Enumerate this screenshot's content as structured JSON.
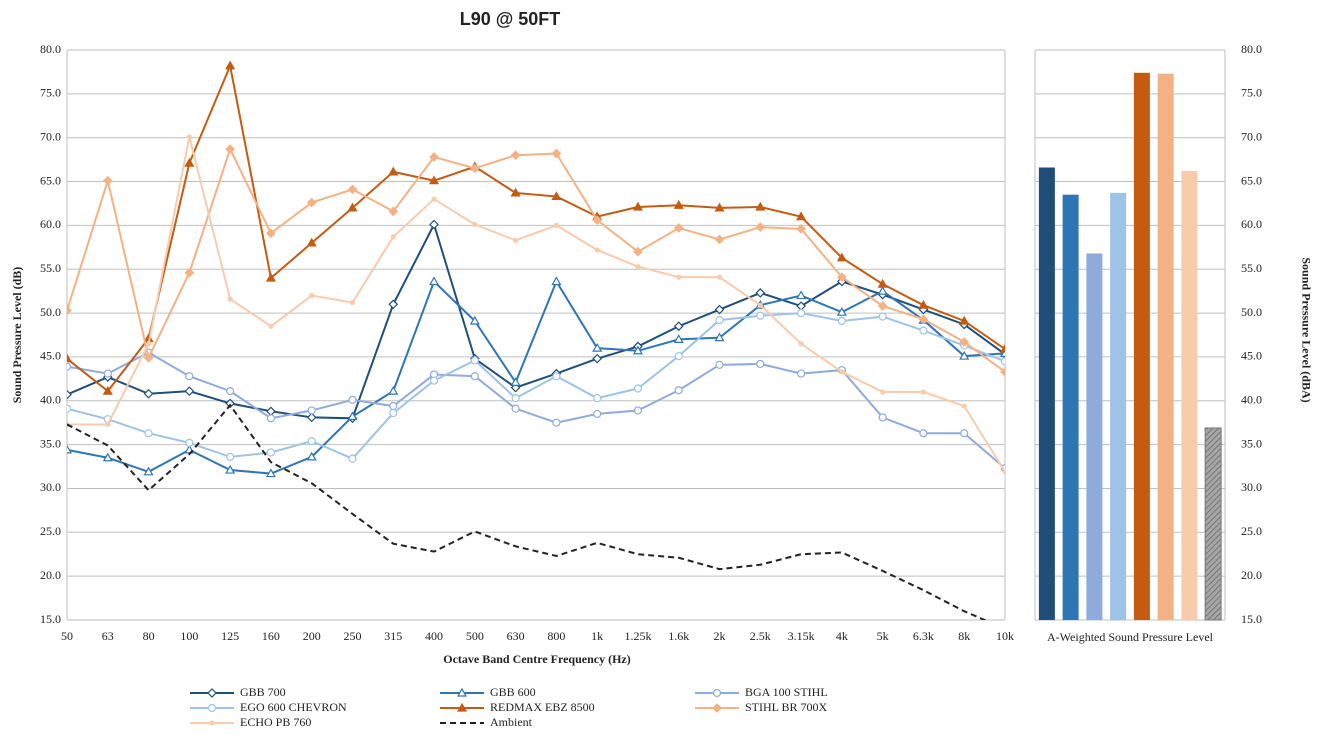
{
  "chart_data": [
    {
      "type": "line",
      "title": "L90 @ 50FT",
      "x_label": "Octave Band Centre Frequency (Hz)",
      "y_label": "Sound Pressure Level (dB)",
      "categories": [
        "50",
        "63",
        "80",
        "100",
        "125",
        "160",
        "200",
        "250",
        "315",
        "400",
        "500",
        "630",
        "800",
        "1k",
        "1.25k",
        "1.6k",
        "2k",
        "2.5k",
        "3.15k",
        "4k",
        "5k",
        "6.3k",
        "8k",
        "10k"
      ],
      "ylim": [
        15,
        80
      ],
      "yticks": [
        {
          "value": 15,
          "label": "15.0"
        },
        {
          "value": 20,
          "label": "20.0"
        },
        {
          "value": 25,
          "label": "25.0"
        },
        {
          "value": 30,
          "label": "30.0"
        },
        {
          "value": 35,
          "label": "35.0"
        },
        {
          "value": 40,
          "label": "40.0"
        },
        {
          "value": 45,
          "label": "45.0"
        },
        {
          "value": 50,
          "label": "50.0"
        },
        {
          "value": 55,
          "label": "55.0"
        },
        {
          "value": 60,
          "label": "60.0"
        },
        {
          "value": 65,
          "label": "65.0"
        },
        {
          "value": 70,
          "label": "70.0"
        },
        {
          "value": 75,
          "label": "75.0"
        },
        {
          "value": 80,
          "label": "80.0"
        }
      ],
      "grid": true,
      "series": [
        {
          "name": "GBB 700",
          "color": "#1f4e79",
          "marker": "diamond",
          "marker_fill": false,
          "values": [
            40.7,
            42.7,
            40.8,
            41.1,
            39.7,
            38.8,
            38.1,
            38.0,
            51.0,
            60.1,
            44.8,
            41.5,
            43.1,
            44.8,
            46.2,
            48.5,
            50.4,
            52.3,
            50.8,
            53.6,
            52.1,
            50.4,
            48.7,
            45.3
          ]
        },
        {
          "name": "GBB 600",
          "color": "#2e75b6",
          "marker": "triangle",
          "marker_fill": false,
          "values": [
            34.4,
            33.5,
            31.9,
            34.4,
            32.1,
            31.7,
            33.6,
            38.2,
            41.1,
            53.6,
            49.1,
            42.1,
            53.6,
            46.0,
            45.7,
            47.0,
            47.2,
            50.9,
            52.0,
            50.1,
            52.5,
            49.2,
            45.1,
            45.4
          ]
        },
        {
          "name": "BGA 100 STIHL",
          "color": "#8faadc",
          "marker": "circle",
          "marker_fill": false,
          "values": [
            43.9,
            43.1,
            45.5,
            42.8,
            41.1,
            38.0,
            38.9,
            40.1,
            39.4,
            43.0,
            42.8,
            39.1,
            37.5,
            38.5,
            38.9,
            41.2,
            44.1,
            44.2,
            43.1,
            43.5,
            38.1,
            36.3,
            36.3,
            32.3
          ]
        },
        {
          "name": "EGO 600 CHEVRON",
          "color": "#9dc3e6",
          "marker": "circle",
          "marker_fill": false,
          "values": [
            39.1,
            37.9,
            36.3,
            35.2,
            33.6,
            34.1,
            35.4,
            33.4,
            38.6,
            42.3,
            44.6,
            40.3,
            42.8,
            40.3,
            41.4,
            45.1,
            49.2,
            49.7,
            50.0,
            49.1,
            49.6,
            48.0,
            46.3,
            44.5
          ]
        },
        {
          "name": "REDMAX EBZ 8500",
          "color": "#c55a11",
          "marker": "triangle",
          "marker_fill": true,
          "values": [
            44.8,
            41.1,
            47.1,
            67.1,
            78.2,
            54.0,
            58.0,
            62.0,
            66.1,
            65.1,
            66.7,
            63.7,
            63.3,
            61.0,
            62.1,
            62.3,
            62.0,
            62.1,
            61.0,
            56.3,
            53.3,
            50.9,
            49.1,
            45.9
          ]
        },
        {
          "name": "STIHL BR 700X",
          "color": "#f4b183",
          "marker": "diamond",
          "marker_fill": true,
          "values": [
            50.3,
            65.1,
            44.9,
            54.6,
            68.7,
            59.1,
            62.6,
            64.1,
            61.6,
            67.8,
            66.5,
            68.0,
            68.2,
            60.6,
            57.0,
            59.7,
            58.4,
            59.8,
            59.6,
            54.1,
            50.8,
            49.3,
            46.7,
            43.3
          ]
        },
        {
          "name": "ECHO PB 760",
          "color": "#f8cbad",
          "marker": "small",
          "marker_fill": true,
          "values": [
            37.3,
            37.3,
            46.5,
            70.1,
            51.6,
            48.5,
            52.0,
            51.2,
            58.7,
            63.0,
            60.1,
            58.3,
            60.0,
            57.2,
            55.3,
            54.1,
            54.1,
            50.9,
            46.5,
            43.3,
            41.0,
            41.0,
            39.4,
            31.9
          ]
        },
        {
          "name": "Ambient",
          "color": "#222222",
          "marker": "none",
          "dash": true,
          "values": [
            37.3,
            34.9,
            29.8,
            33.9,
            39.5,
            33.0,
            30.6,
            27.1,
            23.7,
            22.8,
            25.1,
            23.4,
            22.3,
            23.8,
            22.5,
            22.1,
            20.8,
            21.3,
            22.5,
            22.7,
            20.6,
            18.4,
            16.0,
            14.0
          ]
        }
      ]
    },
    {
      "type": "bar",
      "x_label": "A-Weighted Sound Pressure Level",
      "y_label": "Sound Pressure Level (dBA)",
      "values": [
        66.6,
        63.5,
        56.8,
        63.7,
        77.4,
        77.3,
        66.2,
        36.9
      ],
      "colors": [
        "#1f4e79",
        "#2e75b6",
        "#8faadc",
        "#9dc3e6",
        "#c55a11",
        "#f4b183",
        "#f8cbad",
        "#a6a6a6"
      ],
      "hatch": [
        false,
        false,
        false,
        false,
        false,
        false,
        false,
        true
      ],
      "ylim": [
        15,
        80
      ],
      "yticks": [
        {
          "value": 15,
          "label": "15.0"
        },
        {
          "value": 20,
          "label": "20.0"
        },
        {
          "value": 25,
          "label": "25.0"
        },
        {
          "value": 30,
          "label": "30.0"
        },
        {
          "value": 35,
          "label": "35.0"
        },
        {
          "value": 40,
          "label": "40.0"
        },
        {
          "value": 45,
          "label": "45.0"
        },
        {
          "value": 50,
          "label": "50.0"
        },
        {
          "value": 55,
          "label": "55.0"
        },
        {
          "value": 60,
          "label": "60.0"
        },
        {
          "value": 65,
          "label": "65.0"
        },
        {
          "value": 70,
          "label": "70.0"
        },
        {
          "value": 75,
          "label": "75.0"
        },
        {
          "value": 80,
          "label": "80.0"
        }
      ],
      "grid": true
    }
  ]
}
